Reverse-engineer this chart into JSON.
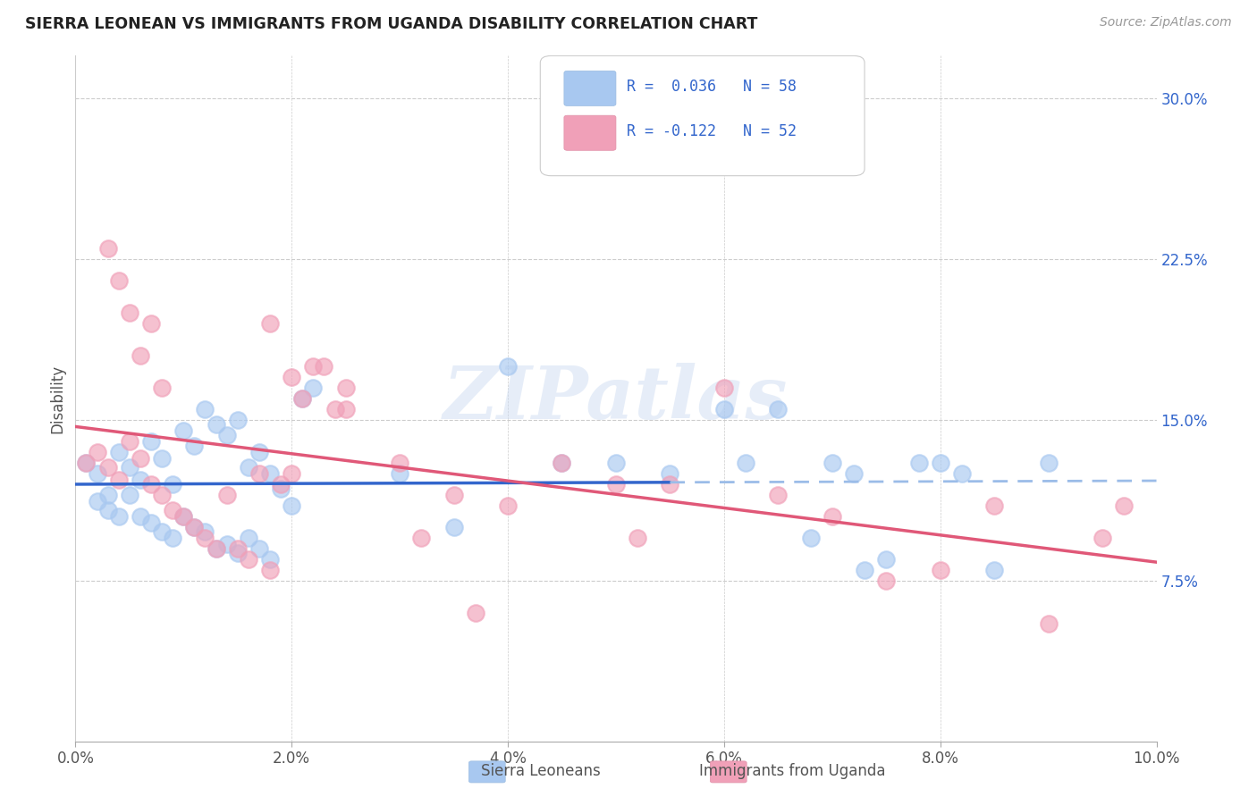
{
  "title": "SIERRA LEONEAN VS IMMIGRANTS FROM UGANDA DISABILITY CORRELATION CHART",
  "source": "Source: ZipAtlas.com",
  "ylabel": "Disability",
  "xlim": [
    0.0,
    0.1
  ],
  "ylim": [
    0.0,
    0.32
  ],
  "xticks": [
    0.0,
    0.02,
    0.04,
    0.06,
    0.08,
    0.1
  ],
  "xtick_labels": [
    "0.0%",
    "2.0%",
    "4.0%",
    "6.0%",
    "8.0%",
    "10.0%"
  ],
  "yticks": [
    0.075,
    0.15,
    0.225,
    0.3
  ],
  "ytick_labels": [
    "7.5%",
    "15.0%",
    "22.5%",
    "30.0%"
  ],
  "blue_color": "#A8C8F0",
  "pink_color": "#F0A0B8",
  "trend_blue_solid": "#3366CC",
  "trend_blue_dash": "#9BBCE8",
  "trend_pink": "#E0607080",
  "legend_label1": "Sierra Leoneans",
  "legend_label2": "Immigrants from Uganda",
  "watermark": "ZIPatlas",
  "background_color": "#FFFFFF",
  "grid_color": "#CCCCCC",
  "blue_scatter_x": [
    0.001,
    0.002,
    0.003,
    0.004,
    0.005,
    0.006,
    0.007,
    0.008,
    0.009,
    0.01,
    0.011,
    0.012,
    0.013,
    0.014,
    0.015,
    0.016,
    0.017,
    0.018,
    0.019,
    0.02,
    0.021,
    0.022,
    0.002,
    0.003,
    0.004,
    0.005,
    0.006,
    0.007,
    0.008,
    0.009,
    0.01,
    0.011,
    0.012,
    0.013,
    0.014,
    0.015,
    0.016,
    0.017,
    0.018,
    0.03,
    0.035,
    0.04,
    0.045,
    0.05,
    0.055,
    0.06,
    0.065,
    0.07,
    0.072,
    0.075,
    0.08,
    0.082,
    0.085,
    0.09,
    0.062,
    0.068,
    0.073,
    0.078
  ],
  "blue_scatter_y": [
    0.13,
    0.125,
    0.115,
    0.135,
    0.128,
    0.122,
    0.14,
    0.132,
    0.12,
    0.145,
    0.138,
    0.155,
    0.148,
    0.143,
    0.15,
    0.128,
    0.135,
    0.125,
    0.118,
    0.11,
    0.16,
    0.165,
    0.112,
    0.108,
    0.105,
    0.115,
    0.105,
    0.102,
    0.098,
    0.095,
    0.105,
    0.1,
    0.098,
    0.09,
    0.092,
    0.088,
    0.095,
    0.09,
    0.085,
    0.125,
    0.1,
    0.175,
    0.13,
    0.13,
    0.125,
    0.155,
    0.155,
    0.13,
    0.125,
    0.085,
    0.13,
    0.125,
    0.08,
    0.13,
    0.13,
    0.095,
    0.08,
    0.13
  ],
  "pink_scatter_x": [
    0.001,
    0.002,
    0.003,
    0.004,
    0.005,
    0.006,
    0.007,
    0.008,
    0.009,
    0.01,
    0.011,
    0.012,
    0.013,
    0.014,
    0.015,
    0.016,
    0.017,
    0.018,
    0.019,
    0.02,
    0.021,
    0.022,
    0.023,
    0.024,
    0.025,
    0.003,
    0.004,
    0.005,
    0.006,
    0.007,
    0.008,
    0.018,
    0.02,
    0.025,
    0.03,
    0.035,
    0.04,
    0.045,
    0.05,
    0.055,
    0.06,
    0.065,
    0.07,
    0.075,
    0.08,
    0.085,
    0.09,
    0.095,
    0.097,
    0.032,
    0.037,
    0.052
  ],
  "pink_scatter_y": [
    0.13,
    0.135,
    0.128,
    0.122,
    0.14,
    0.132,
    0.12,
    0.115,
    0.108,
    0.105,
    0.1,
    0.095,
    0.09,
    0.115,
    0.09,
    0.085,
    0.125,
    0.08,
    0.12,
    0.125,
    0.16,
    0.175,
    0.175,
    0.155,
    0.155,
    0.23,
    0.215,
    0.2,
    0.18,
    0.195,
    0.165,
    0.195,
    0.17,
    0.165,
    0.13,
    0.115,
    0.11,
    0.13,
    0.12,
    0.12,
    0.165,
    0.115,
    0.105,
    0.075,
    0.08,
    0.11,
    0.055,
    0.095,
    0.11,
    0.095,
    0.06,
    0.095
  ]
}
